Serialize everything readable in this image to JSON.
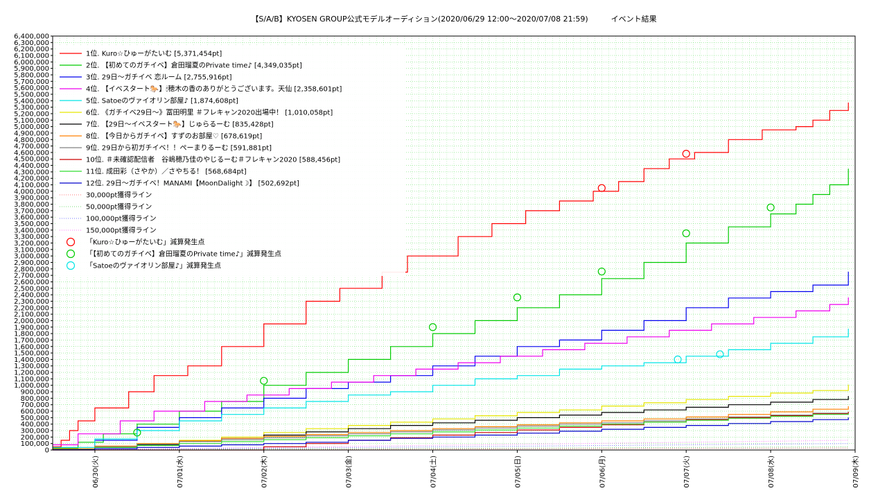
{
  "chart_data": {
    "type": "line",
    "title": "【S/A/B】KYOSEN GROUP公式モデルオーディション(2020/06/29 12:00～2020/07/08 21:59)　　　イベント結果",
    "ylim": [
      0,
      6400000
    ],
    "yticks": [
      "0",
      "100,000",
      "200,000",
      "300,000",
      "400,000",
      "500,000",
      "600,000",
      "700,000",
      "800,000",
      "900,000",
      "1,000,000",
      "1,100,000",
      "1,200,000",
      "1,300,000",
      "1,400,000",
      "1,500,000",
      "1,600,000",
      "1,700,000",
      "1,800,000",
      "1,900,000",
      "2,000,000",
      "2,100,000",
      "2,200,000",
      "2,300,000",
      "2,400,000",
      "2,500,000",
      "2,600,000",
      "2,700,000",
      "2,800,000",
      "2,900,000",
      "3,000,000",
      "3,100,000",
      "3,200,000",
      "3,300,000",
      "3,400,000",
      "3,500,000",
      "3,600,000",
      "3,700,000",
      "3,800,000",
      "3,900,000",
      "4,000,000",
      "4,100,000",
      "4,200,000",
      "4,300,000",
      "4,400,000",
      "4,500,000",
      "4,600,000",
      "4,700,000",
      "4,800,000",
      "4,900,000",
      "5,000,000",
      "5,100,000",
      "5,200,000",
      "5,300,000",
      "5,400,000",
      "5,500,000",
      "5,600,000",
      "5,700,000",
      "5,800,000",
      "5,900,000",
      "6,000,000",
      "6,100,000",
      "6,200,000",
      "6,300,000",
      "6,400,000"
    ],
    "xlim": [
      0,
      9.42
    ],
    "xticks": [
      {
        "label": "06/30(火)",
        "x": 0.5
      },
      {
        "label": "07/01(水)",
        "x": 1.5
      },
      {
        "label": "07/02(木)",
        "x": 2.5
      },
      {
        "label": "07/03(金)",
        "x": 3.5
      },
      {
        "label": "07/04(土)",
        "x": 4.5
      },
      {
        "label": "07/05(日)",
        "x": 5.5
      },
      {
        "label": "07/06(月)",
        "x": 6.5
      },
      {
        "label": "07/07(火)",
        "x": 7.5
      },
      {
        "label": "07/08(水)",
        "x": 8.5
      },
      {
        "label": "07/09(木)",
        "x": 9.5
      }
    ],
    "x_unit_note_hidden": "",
    "grid": true,
    "legend_position": "top-left",
    "series": [
      {
        "name": "1位. Kuro☆ひゅーがたいむ [5,371,454pt]",
        "color": "#ff0000",
        "x": [
          0,
          0.1,
          0.2,
          0.3,
          0.5,
          0.9,
          1.2,
          1.6,
          2.0,
          2.5,
          3.0,
          3.4,
          3.9,
          4.2,
          4.8,
          5.2,
          5.6,
          6.0,
          6.4,
          6.7,
          7.0,
          7.3,
          7.6,
          8.0,
          8.4,
          8.8,
          9.0,
          9.2,
          9.42
        ],
        "y": [
          50000,
          150000,
          300000,
          450000,
          650000,
          900000,
          1150000,
          1300000,
          1600000,
          1950000,
          2300000,
          2500000,
          2750000,
          3000000,
          3300000,
          3500000,
          3700000,
          3850000,
          4000000,
          4150000,
          4350000,
          4500000,
          4600000,
          4800000,
          4950000,
          5000000,
          5100000,
          5250000,
          5371454
        ]
      },
      {
        "name": "2位. 【初めてのガチイベ】倉田瑠夏のPrivate time♪ [4,349,035pt]",
        "color": "#00cc00",
        "x": [
          0,
          0.3,
          0.6,
          1.0,
          1.5,
          2.0,
          2.5,
          3.0,
          3.5,
          4.0,
          4.5,
          5.0,
          5.5,
          6.0,
          6.5,
          7.0,
          7.5,
          8.0,
          8.5,
          8.8,
          9.0,
          9.2,
          9.42
        ],
        "y": [
          30000,
          120000,
          250000,
          400000,
          600000,
          750000,
          1000000,
          1200000,
          1400000,
          1600000,
          1800000,
          2000000,
          2200000,
          2400000,
          2650000,
          2900000,
          3200000,
          3450000,
          3650000,
          3800000,
          3950000,
          4100000,
          4349035
        ]
      },
      {
        "name": "3位. 29日～ガチイベ 恋ルーム [2,755,916pt]",
        "color": "#0000ee",
        "x": [
          0,
          0.5,
          1.0,
          1.5,
          2.0,
          2.5,
          3.0,
          3.5,
          4.0,
          4.5,
          5.0,
          5.5,
          6.0,
          6.5,
          7.0,
          7.5,
          8.0,
          8.5,
          9.0,
          9.42
        ],
        "y": [
          20000,
          150000,
          350000,
          500000,
          650000,
          800000,
          950000,
          1050000,
          1150000,
          1300000,
          1450000,
          1600000,
          1700000,
          1850000,
          2000000,
          2200000,
          2350000,
          2450000,
          2550000,
          2755916
        ]
      },
      {
        "name": "4位. 【イベスタート🐎】🕯穂木の香のありがとうございます。天仙 [2,358,601pt]",
        "color": "#ee00ee",
        "x": [
          0,
          0.3,
          0.8,
          1.2,
          1.8,
          2.3,
          2.8,
          3.3,
          3.8,
          4.3,
          4.8,
          5.3,
          5.8,
          6.3,
          6.8,
          7.3,
          7.8,
          8.3,
          8.8,
          9.2,
          9.42
        ],
        "y": [
          80000,
          250000,
          450000,
          600000,
          750000,
          850000,
          950000,
          1050000,
          1150000,
          1250000,
          1350000,
          1450000,
          1550000,
          1650000,
          1750000,
          1850000,
          1950000,
          2050000,
          2150000,
          2250000,
          2358601
        ]
      },
      {
        "name": "5位. Satoeのヴァイオリン部屋♪ [1,874,608pt]",
        "color": "#00e5e5",
        "x": [
          0,
          0.5,
          1.0,
          1.5,
          2.0,
          2.5,
          3.0,
          3.5,
          4.0,
          4.5,
          5.0,
          5.5,
          6.0,
          6.5,
          7.0,
          7.5,
          8.0,
          8.5,
          9.0,
          9.42
        ],
        "y": [
          40000,
          170000,
          300000,
          450000,
          550000,
          650000,
          750000,
          850000,
          900000,
          1000000,
          1100000,
          1150000,
          1250000,
          1300000,
          1350000,
          1450000,
          1550000,
          1650000,
          1750000,
          1874608
        ]
      },
      {
        "name": "6位. 《ガチイベ29日～》冨田明里 ＃フレキャン2020出場中！ [1,010,058pt]",
        "color": "#e6e600",
        "x": [
          0,
          0.5,
          1.0,
          1.5,
          2.0,
          2.5,
          3.0,
          3.5,
          4.0,
          4.5,
          5.0,
          5.5,
          6.0,
          6.5,
          7.0,
          7.5,
          8.0,
          8.5,
          9.0,
          9.42
        ],
        "y": [
          10000,
          50000,
          100000,
          150000,
          200000,
          270000,
          330000,
          380000,
          430000,
          480000,
          530000,
          580000,
          620000,
          680000,
          730000,
          780000,
          830000,
          880000,
          920000,
          1010058
        ]
      },
      {
        "name": "7位. 【29日～イベスタート🐎】じゅらるーむ [835,428pt]",
        "color": "#000000",
        "x": [
          0,
          0.5,
          1.0,
          1.5,
          2.0,
          2.5,
          3.0,
          3.5,
          4.0,
          4.5,
          5.0,
          5.5,
          6.0,
          6.5,
          7.0,
          7.5,
          8.0,
          8.5,
          9.0,
          9.42
        ],
        "y": [
          10000,
          40000,
          80000,
          130000,
          180000,
          230000,
          280000,
          330000,
          380000,
          420000,
          460000,
          500000,
          540000,
          580000,
          620000,
          660000,
          700000,
          740000,
          780000,
          835428
        ]
      },
      {
        "name": "8位. 【今日からガチイベ】すずのお部屋♡ [678,619pt]",
        "color": "#ff8000",
        "x": [
          0,
          0.5,
          1.0,
          1.5,
          2.0,
          2.5,
          3.0,
          3.5,
          4.0,
          4.5,
          5.0,
          5.5,
          6.0,
          6.5,
          7.0,
          7.5,
          8.0,
          8.5,
          9.0,
          9.42
        ],
        "y": [
          20000,
          60000,
          100000,
          140000,
          180000,
          210000,
          240000,
          270000,
          300000,
          330000,
          360000,
          390000,
          420000,
          450000,
          480000,
          510000,
          550000,
          590000,
          630000,
          678619
        ]
      },
      {
        "name": "9位. 29日から初ガチイベ！！ぺーまりるーむ [591,881pt]",
        "color": "#808080",
        "x": [
          0,
          0.5,
          1.0,
          1.5,
          2.0,
          2.5,
          3.0,
          3.5,
          4.0,
          4.5,
          5.0,
          5.5,
          6.0,
          6.5,
          7.0,
          7.5,
          8.0,
          8.5,
          9.0,
          9.42
        ],
        "y": [
          10000,
          50000,
          90000,
          130000,
          160000,
          190000,
          220000,
          250000,
          280000,
          310000,
          340000,
          370000,
          400000,
          420000,
          450000,
          480000,
          510000,
          540000,
          570000,
          591881
        ]
      },
      {
        "name": "10位. ＃未確認配信者　谷嶋穂乃佳のやじるーむ＃フレキャン2020 [588,456pt]",
        "color": "#cc0000",
        "x": [
          0,
          1.0,
          2.0,
          2.5,
          3.0,
          3.5,
          4.0,
          4.5,
          5.0,
          5.5,
          6.0,
          6.5,
          7.0,
          7.5,
          8.0,
          8.5,
          9.0,
          9.42
        ],
        "y": [
          0,
          0,
          0,
          50000,
          100000,
          150000,
          190000,
          230000,
          270000,
          310000,
          350000,
          390000,
          430000,
          470000,
          500000,
          530000,
          560000,
          588456
        ]
      },
      {
        "name": "11位. 成田彩（さやか）／さやちる！ [568,684pt]",
        "color": "#33dd33",
        "x": [
          0,
          0.5,
          1.0,
          1.5,
          2.0,
          2.5,
          3.0,
          3.5,
          4.0,
          4.5,
          5.0,
          5.5,
          6.0,
          6.5,
          7.0,
          7.5,
          8.0,
          8.5,
          9.0,
          9.42
        ],
        "y": [
          10000,
          40000,
          70000,
          100000,
          130000,
          160000,
          190000,
          220000,
          250000,
          280000,
          310000,
          340000,
          370000,
          400000,
          430000,
          460000,
          490000,
          520000,
          550000,
          568684
        ]
      },
      {
        "name": "12位. 29日～ガチイベ！MANAMI【MoonDalight☽】 [502,692pt]",
        "color": "#0000cc",
        "x": [
          0,
          0.5,
          1.0,
          1.5,
          2.0,
          2.5,
          3.0,
          3.5,
          4.0,
          4.5,
          5.0,
          5.5,
          6.0,
          6.5,
          7.0,
          7.5,
          8.0,
          8.5,
          9.0,
          9.42
        ],
        "y": [
          5000,
          20000,
          40000,
          60000,
          80000,
          100000,
          120000,
          150000,
          180000,
          200000,
          230000,
          260000,
          290000,
          320000,
          350000,
          380000,
          410000,
          440000,
          470000,
          502692
        ]
      }
    ],
    "threshold_lines": [
      {
        "name": "30,000pt獲得ライン",
        "color": "#ff7777",
        "y": [
          0,
          30000
        ]
      },
      {
        "name": "50,000pt獲得ライン",
        "color": "#77dd77",
        "y": [
          0,
          50000
        ]
      },
      {
        "name": "100,000pt獲得ライン",
        "color": "#7777ff",
        "y": [
          0,
          100000
        ]
      },
      {
        "name": "150,000pt獲得ライン",
        "color": "#ff77ff",
        "y": [
          0,
          150000
        ]
      }
    ],
    "markers": [
      {
        "name": "「Kuro☆ひゅーがたいむ」減算発生点",
        "color": "#ff0000",
        "points": [
          [
            6.5,
            4050000
          ],
          [
            7.5,
            4580000
          ]
        ]
      },
      {
        "name": "「【初めてのガチイベ】倉田瑠夏のPrivate time♪」減算発生点",
        "color": "#00cc00",
        "points": [
          [
            1.0,
            270000
          ],
          [
            2.5,
            1070000
          ],
          [
            4.5,
            1900000
          ],
          [
            5.5,
            2360000
          ],
          [
            6.5,
            2760000
          ],
          [
            7.5,
            3350000
          ],
          [
            8.5,
            3750000
          ]
        ]
      },
      {
        "name": "「Satoeのヴァイオリン部屋♪」減算発生点",
        "color": "#00e5e5",
        "points": [
          [
            7.4,
            1400000
          ],
          [
            7.9,
            1480000
          ]
        ]
      }
    ]
  }
}
